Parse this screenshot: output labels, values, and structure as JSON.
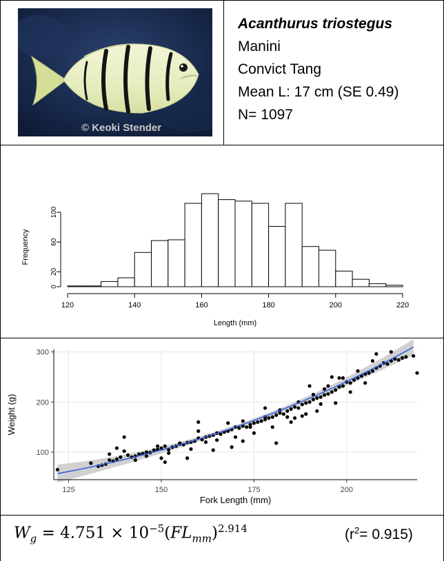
{
  "photo": {
    "credit": "© Keoki Stender",
    "icon": "convict-tang-fish-photo",
    "colors": {
      "background": "#1b2f55",
      "body": "#e9efc6",
      "stripes": "#161616",
      "fin": "#d8df98"
    }
  },
  "species": {
    "scientific_name": "Acanthurus triostegus",
    "hawaiian_name": "Manini",
    "common_name": "Convict Tang",
    "mean_length": "Mean L: 17 cm (SE 0.49)",
    "sample_size": "N= 1097"
  },
  "equation": {
    "lhs": "W",
    "lhs_sub": "g",
    "equals": "=",
    "coefficient": "4.751 × 10",
    "exponent_power": "−5",
    "open": "(",
    "var": "FL",
    "var_sub": "mm",
    "close": ")",
    "power": "2.914",
    "r2_prefix": "(r",
    "r2_sup": "2",
    "r2_suffix": "= 0.915)"
  },
  "chart_data": [
    {
      "type": "bar",
      "title": "",
      "xlabel": "Length (mm)",
      "ylabel": "Frequency",
      "bin_width": 5,
      "bins_start": [
        120,
        125,
        130,
        135,
        140,
        145,
        150,
        155,
        160,
        165,
        170,
        175,
        180,
        185,
        190,
        195,
        200,
        205,
        210,
        215
      ],
      "values": [
        1,
        1,
        7,
        12,
        46,
        62,
        63,
        112,
        125,
        117,
        115,
        112,
        81,
        112,
        54,
        49,
        21,
        10,
        4,
        2
      ],
      "xlim": [
        120,
        220
      ],
      "ylim": [
        0,
        125
      ],
      "x_ticks": [
        120,
        140,
        160,
        180,
        200,
        220
      ],
      "y_ticks": [
        0,
        20,
        60,
        100
      ],
      "colors": {
        "bar_fill": "#ffffff",
        "bar_stroke": "#000000"
      }
    },
    {
      "type": "scatter",
      "title": "",
      "xlabel": "Fork Length (mm)",
      "ylabel": "Weight (g)",
      "xlim": [
        121,
        219
      ],
      "ylim": [
        45,
        305
      ],
      "x_ticks": [
        125,
        150,
        175,
        200
      ],
      "y_ticks": [
        100,
        200,
        300
      ],
      "grid": true,
      "fit": {
        "type": "power",
        "a": 4.751e-05,
        "b": 2.914
      },
      "x": [
        122,
        131,
        133,
        134,
        135,
        136,
        137,
        138,
        139,
        140,
        141,
        142,
        143,
        144,
        145,
        146,
        147,
        148,
        149,
        150,
        151,
        152,
        153,
        154,
        155,
        156,
        157,
        158,
        159,
        160,
        161,
        162,
        163,
        164,
        165,
        166,
        167,
        168,
        169,
        170,
        171,
        172,
        173,
        174,
        175,
        176,
        177,
        178,
        179,
        180,
        181,
        182,
        183,
        184,
        185,
        186,
        187,
        188,
        189,
        190,
        191,
        192,
        193,
        194,
        195,
        196,
        197,
        198,
        199,
        200,
        201,
        202,
        203,
        204,
        205,
        206,
        207,
        208,
        209,
        210,
        211,
        212,
        213,
        214,
        215,
        216,
        218,
        219,
        136,
        140,
        143,
        146,
        149,
        152,
        155,
        158,
        160,
        162,
        165,
        168,
        170,
        172,
        175,
        178,
        180,
        182,
        185,
        187,
        189,
        191,
        193,
        195,
        197,
        199,
        201,
        203,
        205,
        207,
        138,
        150,
        160,
        172,
        178,
        186,
        190,
        192,
        196,
        208,
        212,
        151,
        157,
        164,
        169,
        174,
        181,
        184,
        188,
        194,
        198
      ],
      "y": [
        65,
        78,
        72,
        74,
        76,
        84,
        82,
        86,
        90,
        130,
        94,
        90,
        92,
        96,
        97,
        100,
        99,
        104,
        105,
        108,
        112,
        105,
        110,
        112,
        118,
        115,
        119,
        120,
        122,
        128,
        125,
        130,
        132,
        134,
        138,
        136,
        140,
        142,
        145,
        150,
        148,
        152,
        150,
        155,
        158,
        160,
        162,
        165,
        168,
        170,
        174,
        178,
        176,
        182,
        186,
        190,
        188,
        195,
        198,
        200,
        205,
        208,
        210,
        214,
        216,
        220,
        224,
        230,
        232,
        240,
        238,
        244,
        248,
        252,
        256,
        258,
        262,
        268,
        272,
        278,
        276,
        282,
        286,
        284,
        288,
        290,
        292,
        258,
        96,
        102,
        84,
        92,
        112,
        98,
        116,
        106,
        160,
        120,
        124,
        158,
        130,
        162,
        138,
        170,
        150,
        184,
        160,
        200,
        176,
        215,
        196,
        232,
        198,
        248,
        220,
        262,
        238,
        282,
        108,
        88,
        142,
        122,
        188,
        168,
        232,
        182,
        250,
        296,
        300,
        80,
        88,
        104,
        110,
        150,
        118,
        170,
        172,
        226,
        248
      ]
    }
  ]
}
